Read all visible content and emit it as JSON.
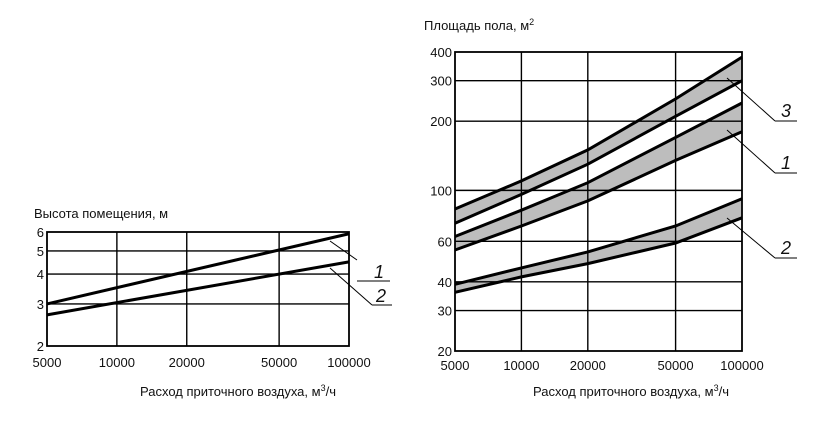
{
  "chart_data": [
    {
      "type": "line",
      "scale": "log-log",
      "ylabel": "Высота помещения, м",
      "xlabel_prefix": "Расход приточного воздуха, м",
      "xlabel_sup": "3",
      "xlabel_suffix": "/ч",
      "x_ticks": [
        5000,
        10000,
        20000,
        50000,
        100000
      ],
      "x_tick_labels": [
        "5000",
        "10000",
        "20000",
        "50000",
        "100000"
      ],
      "y_ticks": [
        2,
        3,
        4,
        5,
        6
      ],
      "y_tick_labels": [
        "2",
        "3",
        "4",
        "5",
        "6"
      ],
      "xlim": [
        5000,
        100000
      ],
      "ylim": [
        2,
        6
      ],
      "grid": true,
      "series": [
        {
          "name": "1",
          "x": [
            5000,
            100000
          ],
          "y": [
            3.0,
            5.9
          ]
        },
        {
          "name": "2",
          "x": [
            5000,
            100000
          ],
          "y": [
            2.7,
            4.5
          ]
        }
      ]
    },
    {
      "type": "area",
      "scale": "log-log",
      "ylabel_prefix": "Площадь пола, м",
      "ylabel_sup": "2",
      "xlabel_prefix": "Расход приточного воздуха, м",
      "xlabel_sup": "3",
      "xlabel_suffix": "/ч",
      "x_ticks": [
        5000,
        10000,
        20000,
        50000,
        100000
      ],
      "x_tick_labels": [
        "5000",
        "10000",
        "20000",
        "50000",
        "100000"
      ],
      "y_ticks": [
        20,
        30,
        40,
        60,
        100,
        200,
        300,
        400
      ],
      "y_tick_labels": [
        "20",
        "30",
        "40",
        "60",
        "100",
        "200",
        "300",
        "400"
      ],
      "xlim": [
        5000,
        100000
      ],
      "ylim": [
        20,
        400
      ],
      "grid": true,
      "bands": [
        {
          "name": "3",
          "x": [
            5000,
            10000,
            20000,
            50000,
            100000
          ],
          "upper": [
            83,
            110,
            150,
            250,
            380
          ],
          "lower": [
            72,
            96,
            130,
            210,
            300
          ]
        },
        {
          "name": "1",
          "x": [
            5000,
            10000,
            20000,
            50000,
            100000
          ],
          "upper": [
            63,
            82,
            108,
            170,
            240
          ],
          "lower": [
            55,
            70,
            90,
            135,
            180
          ]
        },
        {
          "name": "2",
          "x": [
            5000,
            10000,
            20000,
            50000,
            100000
          ],
          "upper": [
            39,
            46,
            54,
            70,
            92
          ],
          "lower": [
            36,
            42,
            48,
            59,
            76
          ]
        }
      ]
    }
  ]
}
